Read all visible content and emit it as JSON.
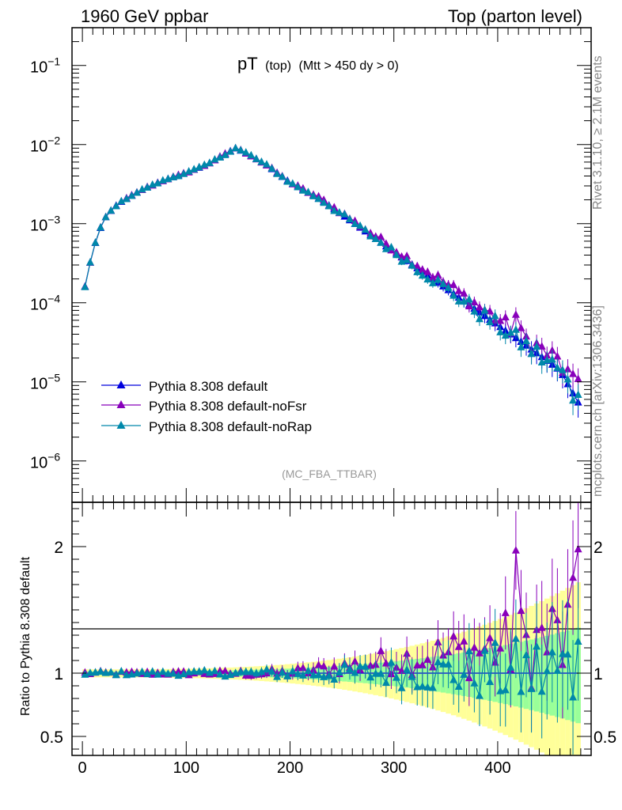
{
  "header": {
    "left": "1960 GeV ppbar",
    "right": "Top (parton level)"
  },
  "side_text": {
    "top": "Rivet 3.1.10, ≥ 2.1M events",
    "bottom": "mcplots.cern.ch [arXiv:1306.3436]"
  },
  "chart_data": {
    "type": "line",
    "title_main": "pT",
    "title_sub": "(top)",
    "title_cut": "(Mtt > 450 dy > 0)",
    "analysis_tag": "(MC_FBA_TTBAR)",
    "ylabel_ratio": "Ratio to Pythia 8.308 default",
    "xlim": [
      -10,
      490
    ],
    "x_ticks": [
      0,
      100,
      200,
      300,
      400
    ],
    "main_ylim": [
      3e-07,
      0.3
    ],
    "main_ytick_labels": [
      {
        "mant": "10",
        "exp": "−1",
        "value": 0.1
      },
      {
        "mant": "10",
        "exp": "−2",
        "value": 0.01
      },
      {
        "mant": "10",
        "exp": "−3",
        "value": 0.001
      },
      {
        "mant": "10",
        "exp": "−4",
        "value": 0.0001
      },
      {
        "mant": "10",
        "exp": "−5",
        "value": 1e-05
      },
      {
        "mant": "10",
        "exp": "−6",
        "value": 1e-06
      }
    ],
    "ratio_ylim": [
      0.35,
      2.35
    ],
    "ratio_ticks": [
      0.5,
      1,
      2
    ],
    "ratio_tick_labels": [
      "0.5",
      "1",
      "2"
    ],
    "grid": false,
    "log_y_main": true,
    "legend_position": "lower-left",
    "series": [
      {
        "name": "Pythia 8.308 default",
        "color": "#0000dd",
        "marker": "triangle"
      },
      {
        "name": "Pythia 8.308 default-noFsr",
        "color": "#8800bb",
        "marker": "triangle"
      },
      {
        "name": "Pythia 8.308 default-noRap",
        "color": "#0088aa",
        "marker": "triangle"
      }
    ],
    "band_colors": {
      "outer": "#ffff99",
      "inner": "#99ff99"
    },
    "key_points_default": {
      "x": [
        2.5,
        10,
        20,
        30,
        40,
        60,
        80,
        100,
        120,
        147.5,
        160,
        180,
        200,
        230,
        260,
        300,
        340,
        380,
        420,
        460,
        477.5
      ],
      "y": [
        0.00016,
        0.00046,
        0.0011,
        0.0016,
        0.002,
        0.0028,
        0.0036,
        0.0044,
        0.0056,
        0.009,
        0.0076,
        0.0052,
        0.0033,
        0.002,
        0.00105,
        0.00044,
        0.00019,
        8e-05,
        3.4e-05,
        1.4e-05,
        5.5e-06
      ]
    }
  }
}
